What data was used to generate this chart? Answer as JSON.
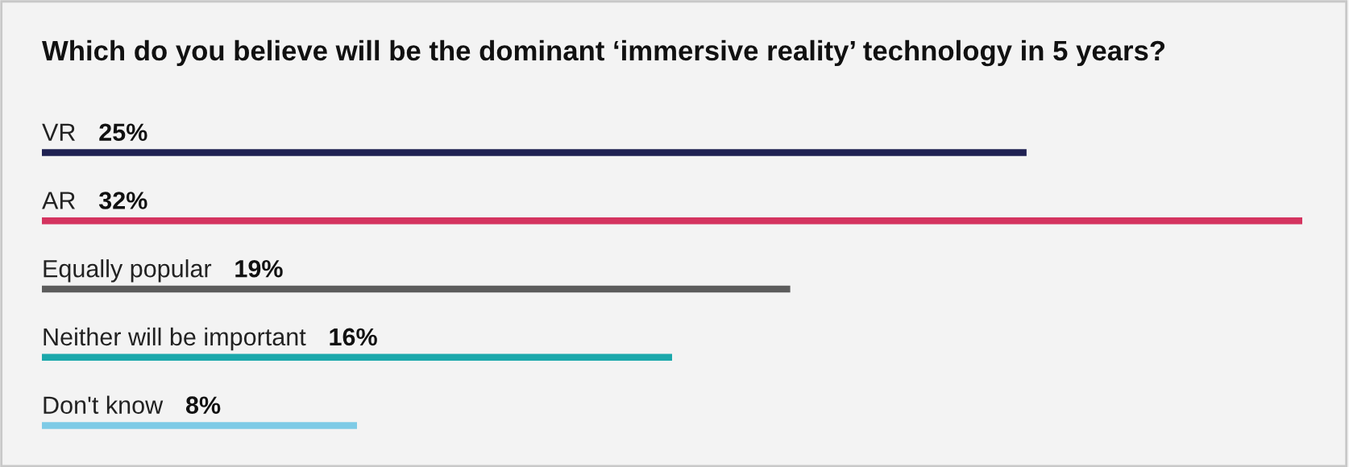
{
  "chart_data": {
    "type": "bar",
    "orientation": "horizontal",
    "title": "Which do you believe will be the dominant ‘immersive reality’ technology in 5 years?",
    "categories": [
      "VR",
      "AR",
      "Equally popular",
      "Neither will be important",
      "Don't know"
    ],
    "values": [
      25,
      32,
      19,
      16,
      8
    ],
    "value_labels": [
      "25%",
      "32%",
      "19%",
      "16%",
      "8%"
    ],
    "colors": [
      "#1f2152",
      "#d4335f",
      "#5c5c5c",
      "#1ba8ab",
      "#7ecbe6"
    ],
    "data_labels": false
  }
}
